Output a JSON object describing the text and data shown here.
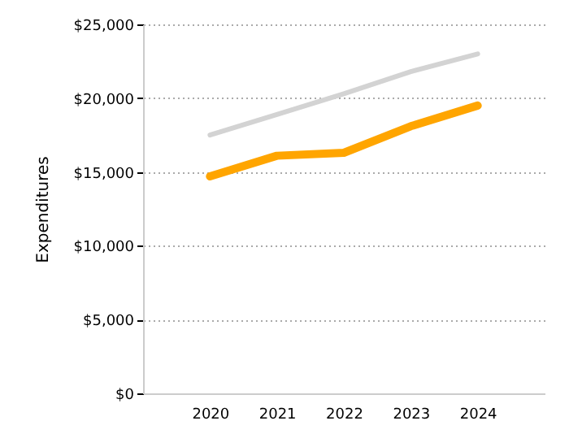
{
  "chart_data": {
    "type": "line",
    "ylabel": "Expenditures",
    "categories": [
      "2020",
      "2021",
      "2022",
      "2023",
      "2024"
    ],
    "series": [
      {
        "color": "#d3d3d3",
        "values": [
          17500,
          18900,
          20300,
          21800,
          23000
        ]
      },
      {
        "color": "#ffa500",
        "values": [
          14700,
          16100,
          16300,
          18100,
          19500
        ]
      }
    ],
    "ylim": [
      0,
      25000
    ],
    "yticks": [
      {
        "value": 0,
        "label": "$0"
      },
      {
        "value": 5000,
        "label": "$5,000"
      },
      {
        "value": 10000,
        "label": "$10,000"
      },
      {
        "value": 15000,
        "label": "$15,000"
      },
      {
        "value": 20000,
        "label": "$20,000"
      },
      {
        "value": 25000,
        "label": "$25,000"
      }
    ],
    "grid": "y",
    "marker": "none",
    "line_style": "solid"
  }
}
